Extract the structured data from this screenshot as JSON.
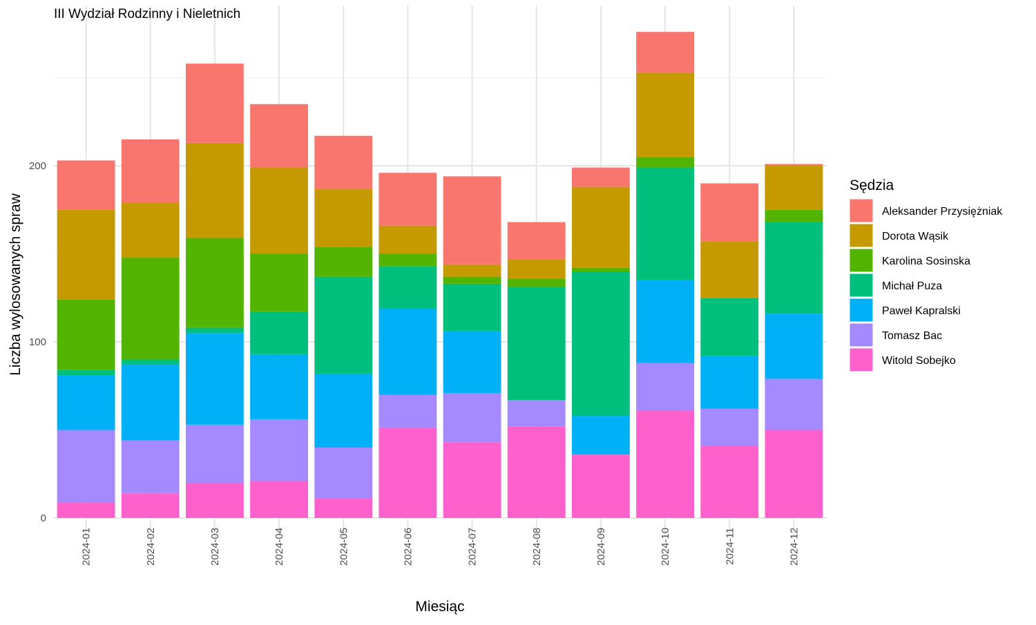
{
  "chart_data": {
    "type": "bar",
    "stacked": true,
    "title": "III Wydział Rodzinny i Nieletnich",
    "xlabel": "Miesiąc",
    "ylabel": "Liczba wylosowanych spraw",
    "ylim": [
      0,
      280
    ],
    "yticks": [
      0,
      100,
      200
    ],
    "grid": true,
    "legend_title": "Sędzia",
    "legend_position": "right",
    "categories": [
      "2024-01",
      "2024-02",
      "2024-03",
      "2024-04",
      "2024-05",
      "2024-06",
      "2024-07",
      "2024-08",
      "2024-09",
      "2024-10",
      "2024-11",
      "2024-12"
    ],
    "series": [
      {
        "name": "Witold Sobejko",
        "color": "#FF61CC",
        "values": [
          9,
          14,
          20,
          21,
          11,
          51,
          43,
          52,
          36,
          61,
          41,
          50
        ]
      },
      {
        "name": "Tomasz Bac",
        "color": "#A58AFF",
        "values": [
          41,
          30,
          33,
          35,
          29,
          19,
          28,
          15,
          0,
          27,
          21,
          29
        ]
      },
      {
        "name": "Paweł Kapralski",
        "color": "#00B0F6",
        "values": [
          31,
          43,
          52,
          37,
          42,
          49,
          35,
          0,
          22,
          47,
          30,
          37
        ]
      },
      {
        "name": "Michał Puza",
        "color": "#00BF7D",
        "values": [
          3,
          3,
          3,
          24,
          55,
          24,
          27,
          64,
          82,
          64,
          33,
          52
        ]
      },
      {
        "name": "Karolina Sosinska",
        "color": "#53B400",
        "values": [
          40,
          58,
          51,
          33,
          17,
          7,
          4,
          5,
          2,
          6,
          0,
          7
        ]
      },
      {
        "name": "Dorota Wąsik",
        "color": "#C49A00",
        "values": [
          51,
          31,
          54,
          49,
          33,
          16,
          7,
          11,
          46,
          48,
          32,
          25
        ]
      },
      {
        "name": "Aleksander Przysiężniak",
        "color": "#F8766D",
        "values": [
          28,
          36,
          45,
          36,
          30,
          30,
          50,
          21,
          11,
          23,
          33,
          1
        ]
      }
    ],
    "legend_order": [
      "Aleksander Przysiężniak",
      "Dorota Wąsik",
      "Karolina Sosinska",
      "Michał Puza",
      "Paweł Kapralski",
      "Tomasz Bac",
      "Witold Sobejko"
    ]
  }
}
